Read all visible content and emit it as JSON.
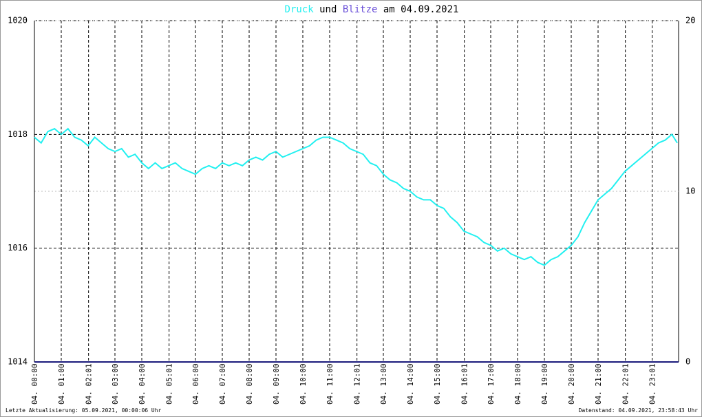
{
  "chart_data": {
    "type": "line",
    "title_connector": "und",
    "title_suffix": "am 04.09.2021",
    "footer_left": "Letzte Aktualisierung: 05.09.2021, 00:00:06 Uhr",
    "footer_right": "Datenstand: 04.09.2021, 23:58:43 Uhr",
    "xlim": [
      0,
      24
    ],
    "xticks": [
      {
        "value": 0,
        "label": "04. 00:00"
      },
      {
        "value": 1,
        "label": "04. 01:00"
      },
      {
        "value": 2.017,
        "label": "04. 02:01"
      },
      {
        "value": 3,
        "label": "04. 03:00"
      },
      {
        "value": 4,
        "label": "04. 04:00"
      },
      {
        "value": 5.017,
        "label": "04. 05:01"
      },
      {
        "value": 6,
        "label": "04. 06:00"
      },
      {
        "value": 7,
        "label": "04. 07:00"
      },
      {
        "value": 8,
        "label": "04. 08:00"
      },
      {
        "value": 9,
        "label": "04. 09:00"
      },
      {
        "value": 10,
        "label": "04. 10:00"
      },
      {
        "value": 11,
        "label": "04. 11:00"
      },
      {
        "value": 12.017,
        "label": "04. 12:01"
      },
      {
        "value": 13,
        "label": "04. 13:00"
      },
      {
        "value": 14,
        "label": "04. 14:00"
      },
      {
        "value": 15,
        "label": "04. 15:00"
      },
      {
        "value": 16.017,
        "label": "04. 16:01"
      },
      {
        "value": 17,
        "label": "04. 17:00"
      },
      {
        "value": 18,
        "label": "04. 18:00"
      },
      {
        "value": 19,
        "label": "04. 19:00"
      },
      {
        "value": 20,
        "label": "04. 20:00"
      },
      {
        "value": 21,
        "label": "04. 21:00"
      },
      {
        "value": 22.017,
        "label": "04. 22:01"
      },
      {
        "value": 23.017,
        "label": "04. 23:01"
      }
    ],
    "ylim": [
      1014,
      1020
    ],
    "yticks": [
      1014,
      1016,
      1018,
      1020
    ],
    "y2lim": [
      0,
      20
    ],
    "y2ticks": [
      0,
      10,
      20
    ],
    "series": [
      {
        "name": "Druck",
        "color": "#22f0f0",
        "x": [
          0,
          0.25,
          0.5,
          0.75,
          1,
          1.25,
          1.5,
          1.75,
          2,
          2.25,
          2.5,
          2.75,
          3,
          3.25,
          3.5,
          3.75,
          4,
          4.25,
          4.5,
          4.75,
          5,
          5.25,
          5.5,
          5.75,
          6,
          6.25,
          6.5,
          6.75,
          7,
          7.25,
          7.5,
          7.75,
          8,
          8.25,
          8.5,
          8.75,
          9,
          9.25,
          9.5,
          9.75,
          10,
          10.25,
          10.5,
          10.75,
          11,
          11.25,
          11.5,
          11.75,
          12,
          12.25,
          12.5,
          12.75,
          13,
          13.25,
          13.5,
          13.75,
          14,
          14.25,
          14.5,
          14.75,
          15,
          15.25,
          15.5,
          15.75,
          16,
          16.25,
          16.5,
          16.75,
          17,
          17.25,
          17.5,
          17.75,
          18,
          18.25,
          18.5,
          18.75,
          19,
          19.25,
          19.5,
          19.75,
          20,
          20.25,
          20.5,
          20.75,
          21,
          21.25,
          21.5,
          21.75,
          22,
          22.25,
          22.5,
          22.75,
          23,
          23.25,
          23.5,
          23.75,
          23.95
        ],
        "values": [
          1017.95,
          1017.85,
          1018.05,
          1018.1,
          1018.0,
          1018.1,
          1017.95,
          1017.9,
          1017.8,
          1017.95,
          1017.85,
          1017.75,
          1017.7,
          1017.75,
          1017.6,
          1017.65,
          1017.5,
          1017.4,
          1017.5,
          1017.4,
          1017.45,
          1017.5,
          1017.4,
          1017.35,
          1017.3,
          1017.4,
          1017.45,
          1017.4,
          1017.5,
          1017.45,
          1017.5,
          1017.45,
          1017.55,
          1017.6,
          1017.55,
          1017.65,
          1017.7,
          1017.6,
          1017.65,
          1017.7,
          1017.75,
          1017.8,
          1017.9,
          1017.95,
          1017.95,
          1017.9,
          1017.85,
          1017.75,
          1017.7,
          1017.65,
          1017.5,
          1017.45,
          1017.3,
          1017.2,
          1017.15,
          1017.05,
          1017.0,
          1016.9,
          1016.85,
          1016.85,
          1016.75,
          1016.7,
          1016.55,
          1016.45,
          1016.3,
          1016.25,
          1016.2,
          1016.1,
          1016.05,
          1015.95,
          1016.0,
          1015.9,
          1015.85,
          1015.8,
          1015.85,
          1015.75,
          1015.7,
          1015.8,
          1015.85,
          1015.95,
          1016.05,
          1016.2,
          1016.45,
          1016.65,
          1016.85,
          1016.95,
          1017.05,
          1017.2,
          1017.35,
          1017.45,
          1017.55,
          1017.65,
          1017.75,
          1017.85,
          1017.9,
          1018.0,
          1017.85
        ]
      },
      {
        "name": "Blitze",
        "color": "#6a4fd8",
        "line_color": "#1a1a7a",
        "axis": "y2",
        "x": [
          0,
          24
        ],
        "values": [
          0,
          0
        ]
      }
    ]
  }
}
